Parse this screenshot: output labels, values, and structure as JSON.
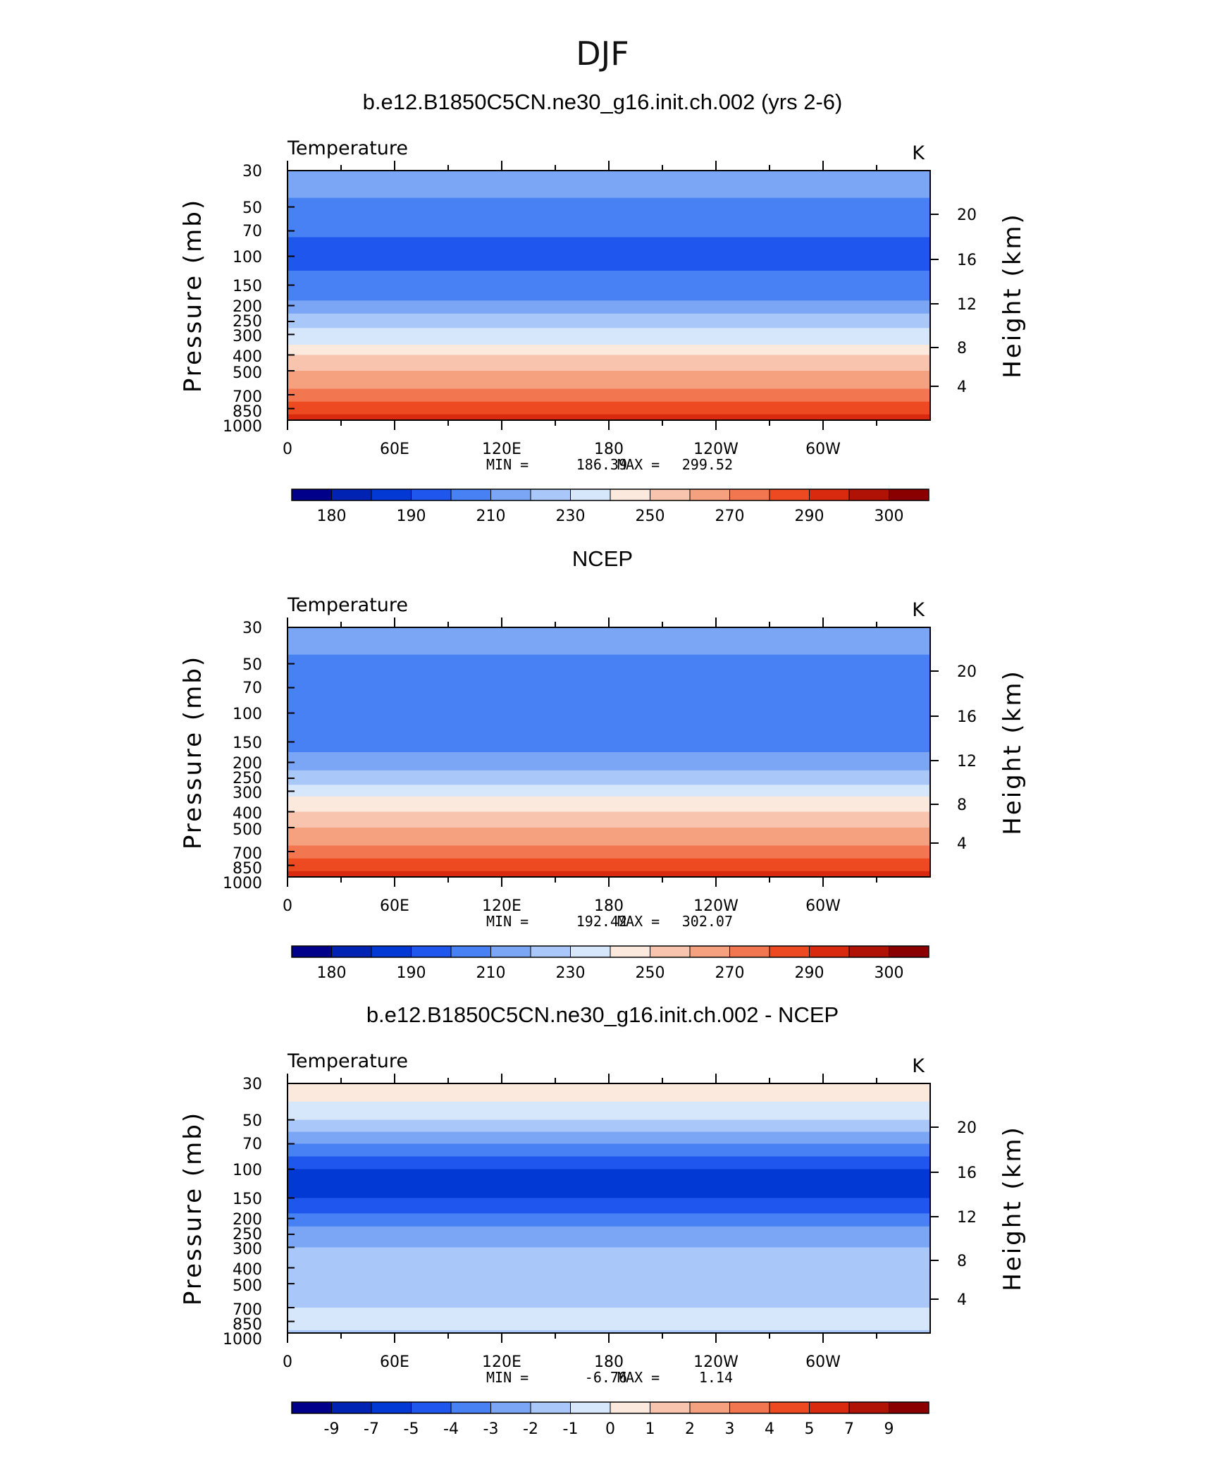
{
  "title": "DJF",
  "y_axis_title": "Pressure (mb)",
  "y2_axis_title": "Height (km)",
  "pressure_ticks": [
    "30",
    "50",
    "70",
    "100",
    "150",
    "200",
    "250",
    "300",
    "400",
    "500",
    "700",
    "850",
    "1000"
  ],
  "height_ticks": [
    "20",
    "16",
    "12",
    "8",
    "4"
  ],
  "lon_ticks": [
    "0",
    "60E",
    "120E",
    "180",
    "120W",
    "60W"
  ],
  "colors_abs": [
    "#01008b",
    "#0123b3",
    "#0239d5",
    "#1f57ee",
    "#4781f3",
    "#7aa6f5",
    "#a9c7f9",
    "#d6e6fb",
    "#fbe9dd",
    "#f8c4ad",
    "#f5a07e",
    "#f2764f",
    "#ee4a22",
    "#d92a0f",
    "#b01205",
    "#8a0000"
  ],
  "colors_diff": [
    "#01008b",
    "#0123b3",
    "#0239d5",
    "#1f57ee",
    "#4781f3",
    "#7aa6f5",
    "#a9c7f9",
    "#d6e6fb",
    "#fbe9dd",
    "#f8c4ad",
    "#f5a07e",
    "#f2764f",
    "#ee4a22",
    "#d92a0f",
    "#b01205",
    "#8a0000"
  ],
  "chart_data": [
    {
      "type": "heatmap",
      "title": "b.e12.B1850C5CN.ne30_g16.init.ch.002 (yrs 2-6)",
      "variable": "Temperature",
      "units": "K",
      "x": [
        "0",
        "60E",
        "120E",
        "180",
        "120W",
        "60W"
      ],
      "ylabel": "Pressure (mb)",
      "y2label": "Height (km)",
      "min_label": "MIN =",
      "min": "186.39",
      "max_label": "MAX =",
      "max": "299.52",
      "colorbar_labels": [
        "180",
        "190",
        "210",
        "230",
        "250",
        "270",
        "290",
        "300"
      ],
      "levels_by_pressure": [
        {
          "p": 30,
          "value": 215
        },
        {
          "p": 50,
          "value": 205
        },
        {
          "p": 70,
          "value": 200
        },
        {
          "p": 100,
          "value": 198
        },
        {
          "p": 150,
          "value": 203
        },
        {
          "p": 200,
          "value": 215
        },
        {
          "p": 250,
          "value": 225
        },
        {
          "p": 300,
          "value": 235
        },
        {
          "p": 400,
          "value": 250
        },
        {
          "p": 500,
          "value": 260
        },
        {
          "p": 700,
          "value": 275
        },
        {
          "p": 850,
          "value": 285
        },
        {
          "p": 1000,
          "value": 295
        }
      ]
    },
    {
      "type": "heatmap",
      "title": "NCEP",
      "variable": "Temperature",
      "units": "K",
      "x": [
        "0",
        "60E",
        "120E",
        "180",
        "120W",
        "60W"
      ],
      "ylabel": "Pressure (mb)",
      "y2label": "Height (km)",
      "min_label": "MIN =",
      "min": "192.42",
      "max_label": "MAX =",
      "max": "302.07",
      "colorbar_labels": [
        "180",
        "190",
        "210",
        "230",
        "250",
        "270",
        "290",
        "300"
      ],
      "levels_by_pressure": [
        {
          "p": 30,
          "value": 215
        },
        {
          "p": 50,
          "value": 207
        },
        {
          "p": 70,
          "value": 202
        },
        {
          "p": 100,
          "value": 200
        },
        {
          "p": 150,
          "value": 205
        },
        {
          "p": 200,
          "value": 217
        },
        {
          "p": 250,
          "value": 227
        },
        {
          "p": 300,
          "value": 237
        },
        {
          "p": 400,
          "value": 252
        },
        {
          "p": 500,
          "value": 262
        },
        {
          "p": 700,
          "value": 277
        },
        {
          "p": 850,
          "value": 287
        },
        {
          "p": 1000,
          "value": 297
        }
      ]
    },
    {
      "type": "heatmap",
      "title": "b.e12.B1850C5CN.ne30_g16.init.ch.002 - NCEP",
      "variable": "Temperature",
      "units": "K",
      "x": [
        "0",
        "60E",
        "120E",
        "180",
        "120W",
        "60W"
      ],
      "ylabel": "Pressure (mb)",
      "y2label": "Height (km)",
      "min_label": "MIN =",
      "min": "-6.76",
      "max_label": "MAX =",
      "max": "1.14",
      "colorbar_labels": [
        "-9",
        "-7",
        "-5",
        "-4",
        "-3",
        "-2",
        "-1",
        "0",
        "1",
        "2",
        "3",
        "4",
        "5",
        "7",
        "9"
      ],
      "levels_by_pressure": [
        {
          "p": 30,
          "value": 0.5
        },
        {
          "p": 50,
          "value": -1.5
        },
        {
          "p": 70,
          "value": -3.5
        },
        {
          "p": 100,
          "value": -5.5
        },
        {
          "p": 150,
          "value": -5
        },
        {
          "p": 200,
          "value": -3.5
        },
        {
          "p": 250,
          "value": -2.5
        },
        {
          "p": 300,
          "value": -2
        },
        {
          "p": 400,
          "value": -1.5
        },
        {
          "p": 500,
          "value": -1.5
        },
        {
          "p": 700,
          "value": -1
        },
        {
          "p": 850,
          "value": -0.5
        },
        {
          "p": 1000,
          "value": -1.5
        }
      ]
    }
  ]
}
